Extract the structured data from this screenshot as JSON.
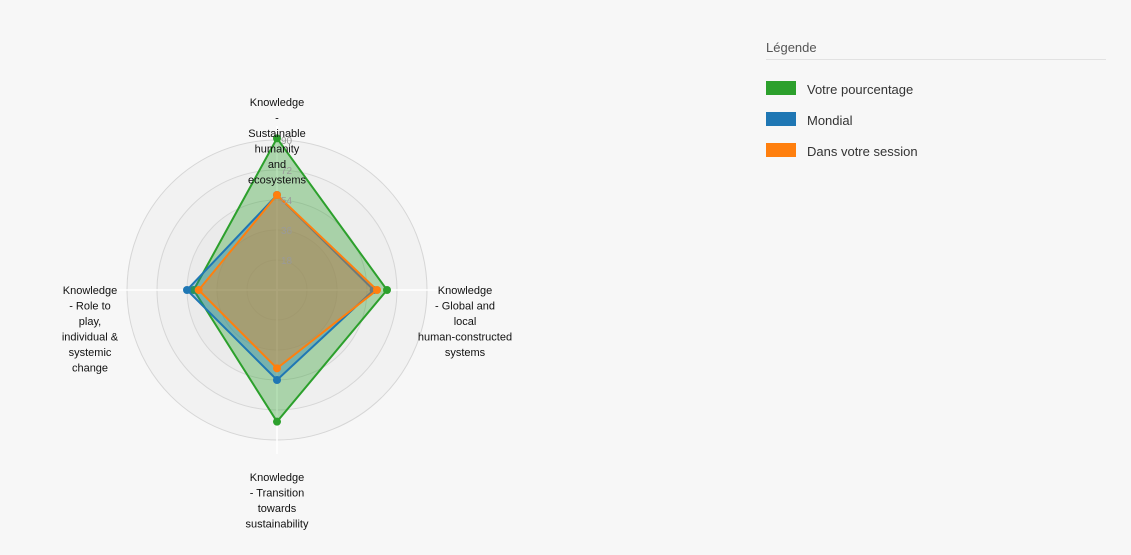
{
  "chart_data": {
    "type": "radar",
    "axes": [
      [
        "Knowledge",
        "-",
        "Sustainable",
        "humanity",
        "and",
        "ecosystems"
      ],
      [
        "Knowledge",
        "- Global and",
        "local",
        "human-constructed",
        "systems"
      ],
      [
        "Knowledge",
        "- Transition",
        "towards",
        "sustainability"
      ],
      [
        "Knowledge",
        "- Role to",
        "play,",
        "individual &",
        "systemic",
        "change"
      ]
    ],
    "ticks": [
      "18",
      "36",
      "54",
      "72",
      "90"
    ],
    "tick_values": [
      18,
      36,
      54,
      72,
      90
    ],
    "rmax": 90,
    "series": [
      {
        "name": "Votre pourcentage",
        "color": "#2ca02c",
        "values": [
          91,
          66,
          79,
          50
        ]
      },
      {
        "name": "Mondial",
        "color": "#1f77b4",
        "values": [
          57,
          58,
          54,
          54
        ]
      },
      {
        "name": "Dans votre session",
        "color": "#ff7f0e",
        "values": [
          57,
          60,
          47,
          47
        ]
      }
    ]
  },
  "legend": {
    "title": "Légende",
    "items": [
      {
        "label": "Votre pourcentage",
        "color": "#2ca02c"
      },
      {
        "label": "Mondial",
        "color": "#1f77b4"
      },
      {
        "label": "Dans votre session",
        "color": "#ff7f0e"
      }
    ]
  }
}
